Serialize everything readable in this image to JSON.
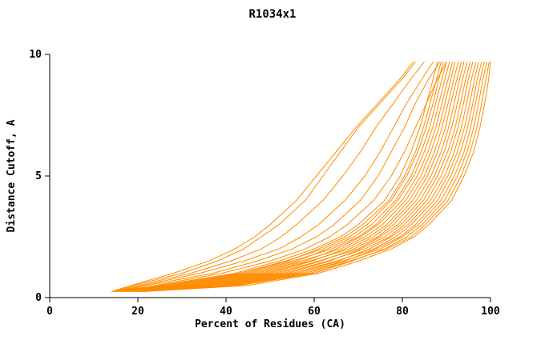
{
  "chart_data": {
    "type": "line",
    "title": "R1034x1",
    "xlabel": "Percent of Residues (CA)",
    "ylabel": "Distance Cutoff, A",
    "xlim": [
      0,
      100
    ],
    "ylim": [
      0,
      10
    ],
    "x_ticks": [
      0,
      20,
      40,
      60,
      80,
      100
    ],
    "y_ticks": [
      0,
      5,
      10
    ],
    "grid": false,
    "legend": "none",
    "line_color": "#ff8c00",
    "axis_color": "#000000",
    "cutoffs": [
      0.25,
      0.5,
      1,
      1.5,
      2,
      2.5,
      3,
      4,
      5,
      6,
      7,
      8,
      9,
      9.7
    ],
    "series": [
      [
        14.0,
        25,
        42,
        52,
        60,
        66,
        70,
        76,
        79.5,
        82,
        84,
        85.5,
        87,
        88
      ],
      [
        14.4,
        27,
        44,
        54,
        61,
        67,
        71,
        77,
        80.5,
        83,
        84.8,
        86.3,
        87.8,
        88.8
      ],
      [
        14.8,
        26,
        43,
        53.5,
        62,
        68,
        72,
        77.5,
        81,
        83.5,
        85.4,
        87,
        88.3,
        89.3
      ],
      [
        15.2,
        29,
        46,
        56,
        63,
        69,
        73,
        78.5,
        82,
        84.3,
        86.2,
        87.6,
        89,
        90
      ],
      [
        15.6,
        28,
        45,
        55,
        64,
        70,
        74,
        79,
        82.6,
        85,
        86.9,
        88.3,
        89.7,
        90.7
      ],
      [
        16.0,
        31,
        48,
        58,
        65,
        70.5,
        74.5,
        80,
        83.4,
        85.8,
        87.6,
        89,
        90.4,
        91.4
      ],
      [
        16.4,
        30,
        47,
        57,
        66,
        71.5,
        75.5,
        80.8,
        84.2,
        86.5,
        88.3,
        89.7,
        91,
        92
      ],
      [
        16.8,
        33,
        50,
        59.5,
        67,
        72.5,
        76.5,
        81.6,
        85,
        87.3,
        89,
        90.4,
        91.7,
        92.7
      ],
      [
        17.2,
        32,
        49,
        59,
        68,
        73.5,
        77.2,
        82.4,
        85.7,
        88,
        89.8,
        91,
        92.4,
        93.4
      ],
      [
        17.6,
        35,
        52,
        61.5,
        69,
        74.5,
        78,
        83.2,
        86.5,
        88.8,
        90.5,
        91.8,
        93,
        94
      ],
      [
        18.0,
        34,
        51,
        61,
        70,
        75,
        79,
        84,
        87.3,
        89.5,
        91.2,
        92.5,
        93.7,
        94.7
      ],
      [
        18.4,
        37,
        54,
        63.5,
        70.5,
        76,
        79.7,
        84.8,
        88,
        90.3,
        92,
        93.2,
        94.4,
        95.4
      ],
      [
        18.8,
        36,
        53,
        63,
        71.5,
        77,
        80.5,
        85.6,
        88.8,
        91,
        92.6,
        93.9,
        95,
        96
      ],
      [
        19.2,
        39,
        56,
        65.5,
        72.5,
        77.5,
        81.3,
        86.4,
        89.6,
        91.8,
        93.4,
        94.6,
        95.7,
        96.7
      ],
      [
        19.6,
        38,
        55,
        65,
        73.5,
        78.5,
        82,
        87.2,
        90.3,
        92.5,
        94.1,
        95.3,
        96.4,
        97.3
      ],
      [
        20.0,
        41,
        58,
        67,
        74,
        79.5,
        83,
        88,
        91,
        93.2,
        94.8,
        96,
        97,
        98
      ],
      [
        20.4,
        40,
        57,
        66.5,
        75,
        80,
        83.7,
        88.8,
        91.8,
        94,
        95.5,
        96.6,
        97.7,
        98.6
      ],
      [
        20.8,
        43,
        60,
        68.5,
        76,
        81,
        84.5,
        89.6,
        92.5,
        94.7,
        96.2,
        97.3,
        98.3,
        99.2
      ],
      [
        21.2,
        42,
        59,
        68,
        76.5,
        82,
        85.2,
        90.4,
        93.3,
        95.4,
        96.9,
        98,
        99,
        99.7
      ],
      [
        21.6,
        45,
        61,
        70,
        77.5,
        82.7,
        86,
        91.2,
        94,
        96.2,
        97.6,
        98.7,
        99.6,
        100
      ],
      [
        14.2,
        19,
        30,
        38,
        44,
        48,
        52,
        58,
        62,
        66,
        70,
        75,
        80,
        83
      ],
      [
        14.6,
        20,
        32,
        41,
        48,
        52.5,
        56,
        62,
        66.5,
        70.5,
        74,
        78,
        82,
        85
      ],
      [
        15.0,
        21,
        34,
        44,
        52,
        57,
        61,
        67,
        71.5,
        75,
        78,
        81,
        84.5,
        87
      ],
      [
        15.5,
        22,
        37,
        47,
        55,
        60.5,
        64.5,
        70.5,
        74.5,
        77.5,
        80.5,
        83,
        86,
        88.5
      ],
      [
        16.5,
        24,
        39,
        50,
        58,
        63.5,
        67.5,
        73.5,
        77.5,
        80.5,
        83,
        85.5,
        88,
        90
      ],
      [
        14.1,
        18.5,
        28,
        36,
        42,
        46.5,
        50,
        56,
        60.5,
        65,
        69.5,
        74.5,
        79.5,
        82.5
      ]
    ]
  }
}
